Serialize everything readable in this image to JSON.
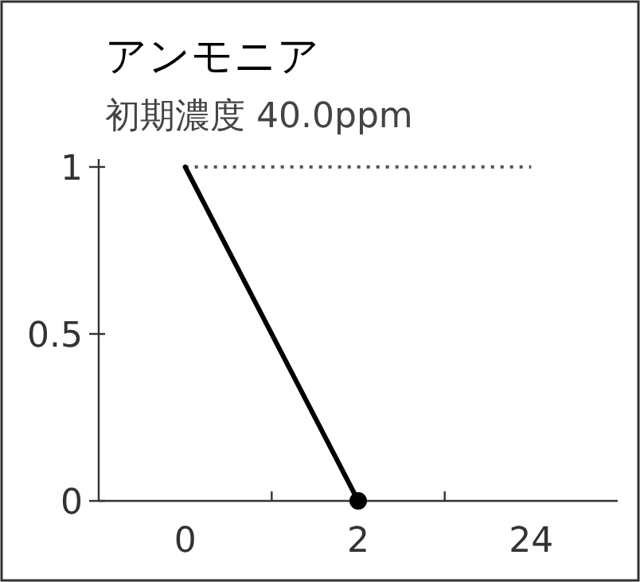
{
  "chart_data": {
    "type": "line",
    "title": "アンモニア",
    "subtitle": "初期濃度 40.0ppm",
    "categories": [
      "0",
      "2",
      "24"
    ],
    "series": [
      {
        "color": "#000000",
        "values": [
          1,
          0,
          null
        ],
        "marker": "none",
        "line_style": "solid"
      },
      {
        "type": "scatter",
        "color": "#000000",
        "values": [
          null,
          0,
          null
        ],
        "marker": "circle"
      }
    ],
    "ylim": [
      0,
      1
    ],
    "yticks": [
      0,
      0.5,
      1
    ],
    "ref_lines": [
      {
        "axis": "y",
        "value": 1,
        "color": "#555555",
        "line_style": "dotted"
      }
    ]
  }
}
